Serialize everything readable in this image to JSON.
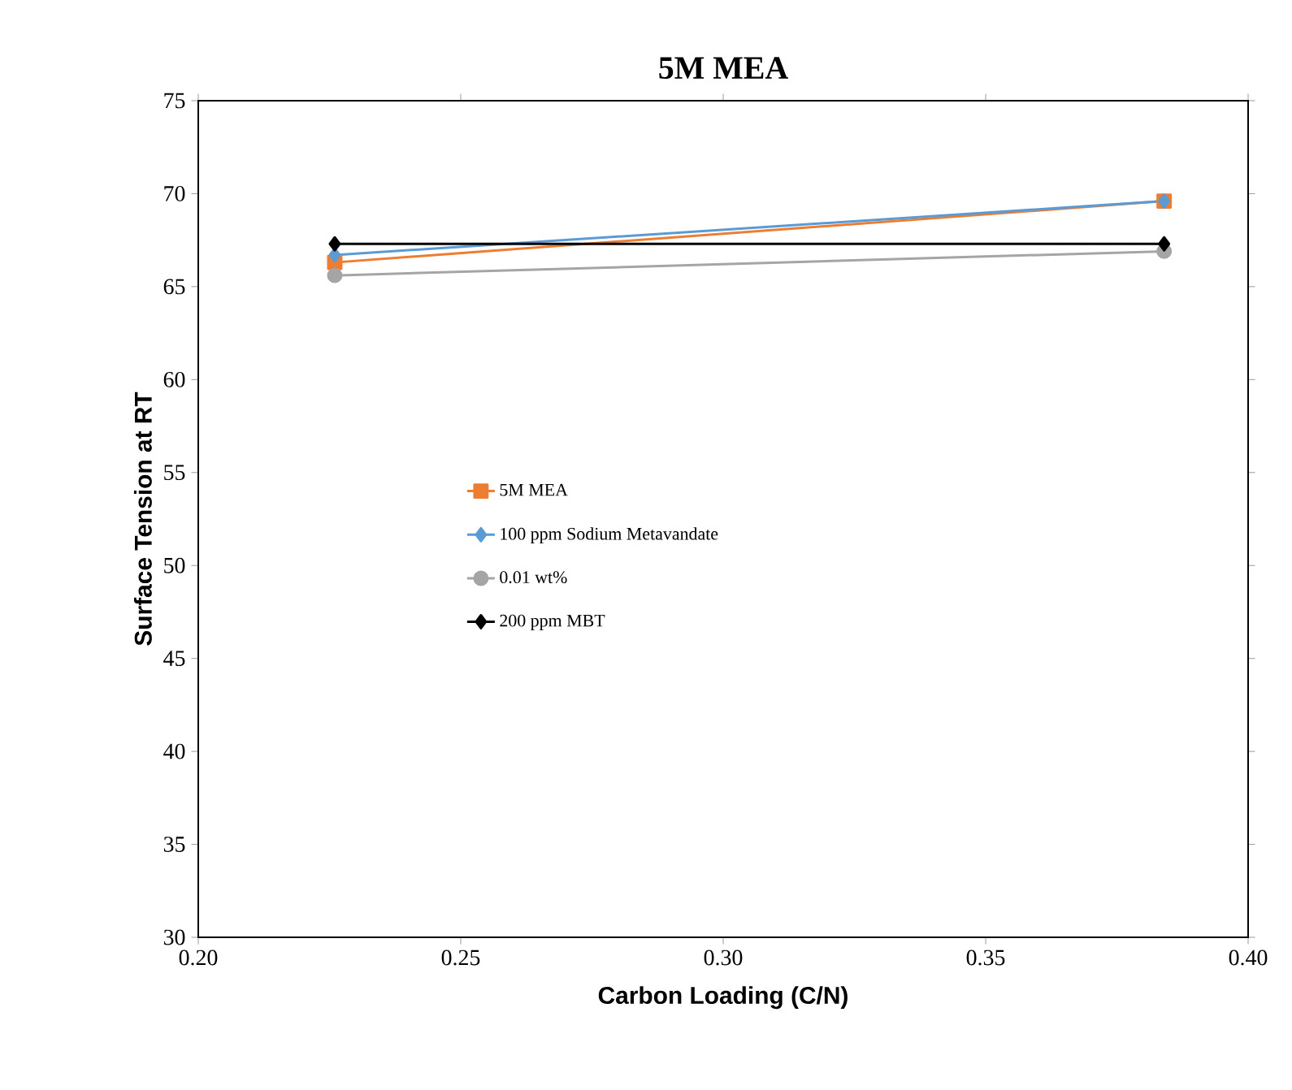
{
  "chart_data": {
    "type": "line",
    "title": "5M MEA",
    "xlabel": "Carbon Loading (C/N)",
    "ylabel": "Surface Tension at RT",
    "x": [
      0.226,
      0.384
    ],
    "series": [
      {
        "name": "5M MEA",
        "color": "#ed7d31",
        "marker": "square",
        "values": [
          66.3,
          69.6
        ]
      },
      {
        "name": "100 ppm Sodium Metavandate",
        "color": "#5b9bd5",
        "marker": "diamond",
        "values": [
          66.7,
          69.6
        ]
      },
      {
        "name": "0.01 wt%",
        "color": "#a5a5a5",
        "marker": "circle",
        "values": [
          65.6,
          66.9
        ]
      },
      {
        "name": "200 ppm MBT",
        "color": "#000000",
        "marker": "diamond",
        "values": [
          67.3,
          67.3
        ]
      }
    ],
    "xlim": [
      0.2,
      0.4
    ],
    "xticks": [
      {
        "value": 0.2,
        "label": "0.20"
      },
      {
        "value": 0.25,
        "label": "0.25"
      },
      {
        "value": 0.3,
        "label": "0.30"
      },
      {
        "value": 0.35,
        "label": "0.35"
      },
      {
        "value": 0.4,
        "label": "0.40"
      }
    ],
    "ylim": [
      30,
      75
    ],
    "yticks": [
      30,
      35,
      40,
      45,
      50,
      55,
      60,
      65,
      70,
      75
    ],
    "legend": "center",
    "grid": false
  }
}
